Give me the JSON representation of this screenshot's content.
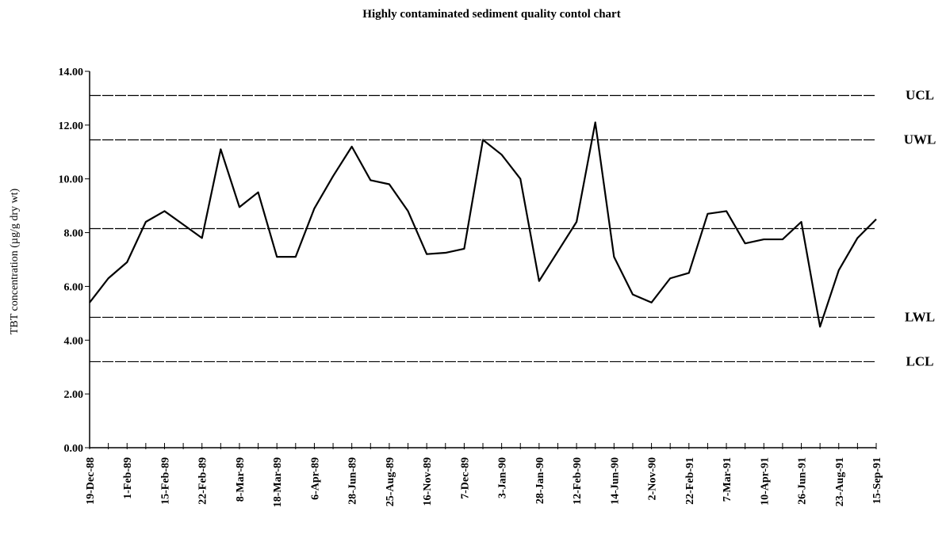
{
  "chart_data": {
    "type": "line",
    "title": "Highly contaminated sediment quality contol chart",
    "y_label": "TBT concentration (µg/g dry wt)",
    "categories": [
      "19-Dec-88",
      null,
      "1-Feb-89",
      null,
      "15-Feb-89",
      null,
      "22-Feb-89",
      null,
      "8-Mar-89",
      null,
      "18-Mar-89",
      null,
      "6-Apr-89",
      null,
      "28-Jun-89",
      null,
      "25-Aug-89",
      null,
      "16-Nov-89",
      null,
      "7-Dec-89",
      null,
      "3-Jan-90",
      null,
      "28-Jan-90",
      null,
      "12-Feb-90",
      null,
      "14-Jun-90",
      null,
      "2-Nov-90",
      null,
      "22-Feb-91",
      null,
      "7-Mar-91",
      null,
      "10-Apr-91",
      null,
      "26-Jun-91",
      null,
      "23-Aug-91",
      null,
      "15-Sep-91"
    ],
    "series": [
      {
        "name": "TBT",
        "color": "#000000",
        "values": [
          5.4,
          6.3,
          6.9,
          8.4,
          8.8,
          8.3,
          7.8,
          11.1,
          8.95,
          9.5,
          7.1,
          7.1,
          8.9,
          10.1,
          11.2,
          9.95,
          9.8,
          8.8,
          7.2,
          7.25,
          7.4,
          11.45,
          10.9,
          10.0,
          6.2,
          7.3,
          8.4,
          12.1,
          7.1,
          5.7,
          5.4,
          6.3,
          6.5,
          8.7,
          8.8,
          7.6,
          7.75,
          7.75,
          8.4,
          4.5,
          6.6,
          7.8,
          8.5
        ]
      }
    ],
    "reference_lines": [
      {
        "label": "UCL",
        "value": 13.1
      },
      {
        "label": "UWL",
        "value": 11.45
      },
      {
        "value": 8.15
      },
      {
        "label": "LWL",
        "value": 4.85
      },
      {
        "label": "LCL",
        "value": 3.2
      }
    ],
    "ylim": [
      0,
      14
    ],
    "yticks": [
      {
        "value": 0,
        "label": "0.00"
      },
      {
        "value": 2,
        "label": "2.00"
      },
      {
        "value": 4,
        "label": "4.00"
      },
      {
        "value": 6,
        "label": "6.00"
      },
      {
        "value": 8,
        "label": "8.00"
      },
      {
        "value": 10,
        "label": "10.00"
      },
      {
        "value": 12,
        "label": "12.00"
      },
      {
        "value": 14,
        "label": "14.00"
      }
    ],
    "grid": false
  }
}
